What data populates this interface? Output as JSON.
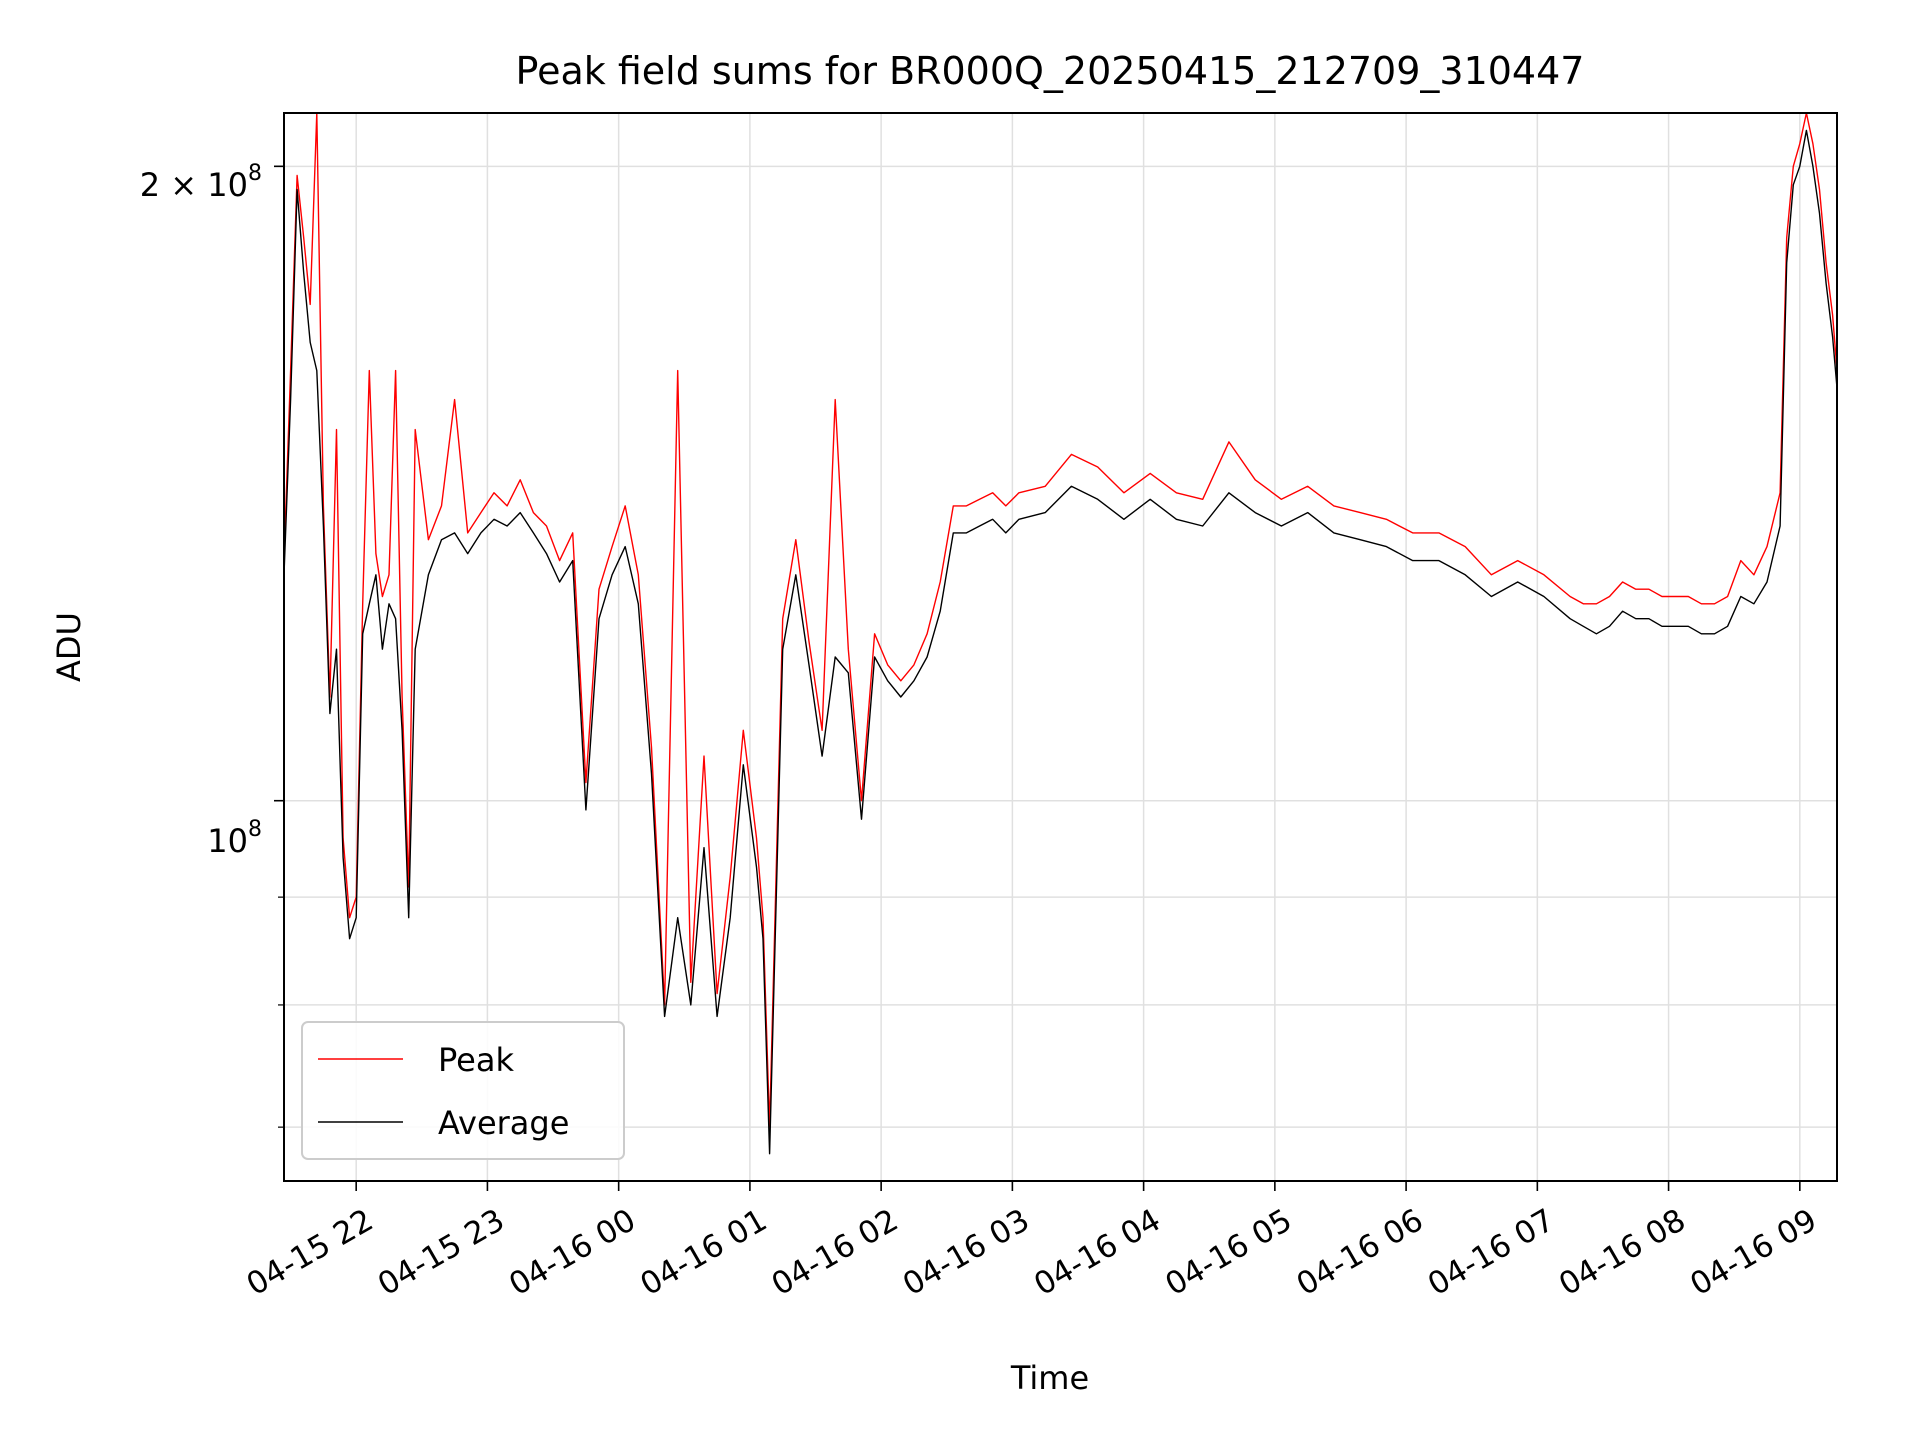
{
  "chart_data": {
    "type": "line",
    "title": "Peak field sums for BR000Q_20250415_212709_310447",
    "xlabel": "Time",
    "ylabel": "ADU",
    "yscale": "log",
    "grid": true,
    "legend_position": "lower-left",
    "x_ticks": [
      "04-15 22",
      "04-15 23",
      "04-16 00",
      "04-16 01",
      "04-16 02",
      "04-16 03",
      "04-16 04",
      "04-16 05",
      "04-16 06",
      "04-16 07",
      "04-16 08",
      "04-16 09"
    ],
    "y_tick_labels": {
      "major_1e8": "10",
      "major_1e8_exp": "8",
      "major_2e8_prefix": "2 × 10",
      "major_2e8_exp": "8"
    },
    "xlim": [
      "04-15 21:27",
      "04-16 09:17"
    ],
    "ylim": [
      66000000,
      212000000
    ],
    "series": [
      {
        "name": "Peak",
        "color": "#ff0000",
        "x": [
          "04-15 21:27",
          "04-15 21:30",
          "04-15 21:33",
          "04-15 21:36",
          "04-15 21:39",
          "04-15 21:42",
          "04-15 21:45",
          "04-15 21:48",
          "04-15 21:51",
          "04-15 21:54",
          "04-15 21:57",
          "04-15 22:00",
          "04-15 22:03",
          "04-15 22:06",
          "04-15 22:09",
          "04-15 22:12",
          "04-15 22:15",
          "04-15 22:18",
          "04-15 22:21",
          "04-15 22:24",
          "04-15 22:27",
          "04-15 22:33",
          "04-15 22:39",
          "04-15 22:45",
          "04-15 22:51",
          "04-15 22:57",
          "04-15 23:03",
          "04-15 23:09",
          "04-15 23:15",
          "04-15 23:21",
          "04-15 23:27",
          "04-15 23:33",
          "04-15 23:39",
          "04-15 23:45",
          "04-15 23:51",
          "04-15 23:57",
          "04-16 00:03",
          "04-16 00:09",
          "04-16 00:15",
          "04-16 00:21",
          "04-16 00:27",
          "04-16 00:33",
          "04-16 00:39",
          "04-16 00:45",
          "04-16 00:51",
          "04-16 00:57",
          "04-16 01:03",
          "04-16 01:06",
          "04-16 01:09",
          "04-16 01:15",
          "04-16 01:21",
          "04-16 01:27",
          "04-16 01:33",
          "04-16 01:39",
          "04-16 01:45",
          "04-16 01:51",
          "04-16 01:57",
          "04-16 02:03",
          "04-16 02:09",
          "04-16 02:15",
          "04-16 02:21",
          "04-16 02:27",
          "04-16 02:33",
          "04-16 02:39",
          "04-16 02:45",
          "04-16 02:51",
          "04-16 02:57",
          "04-16 03:03",
          "04-16 03:15",
          "04-16 03:27",
          "04-16 03:39",
          "04-16 03:51",
          "04-16 04:03",
          "04-16 04:15",
          "04-16 04:27",
          "04-16 04:39",
          "04-16 04:51",
          "04-16 05:03",
          "04-16 05:15",
          "04-16 05:27",
          "04-16 05:39",
          "04-16 05:51",
          "04-16 06:03",
          "04-16 06:15",
          "04-16 06:27",
          "04-16 06:39",
          "04-16 06:51",
          "04-16 07:03",
          "04-16 07:15",
          "04-16 07:21",
          "04-16 07:27",
          "04-16 07:33",
          "04-16 07:39",
          "04-16 07:45",
          "04-16 07:51",
          "04-16 07:57",
          "04-16 08:03",
          "04-16 08:09",
          "04-16 08:15",
          "04-16 08:21",
          "04-16 08:27",
          "04-16 08:33",
          "04-16 08:39",
          "04-16 08:45",
          "04-16 08:51",
          "04-16 08:54",
          "04-16 08:57",
          "04-16 09:00",
          "04-16 09:03",
          "04-16 09:06",
          "04-16 09:09",
          "04-16 09:12",
          "04-16 09:15",
          "04-16 09:17"
        ],
        "values": [
          130000000,
          160000000,
          198000000,
          185000000,
          172000000,
          212000000,
          138000000,
          112000000,
          150000000,
          96000000,
          88000000,
          90000000,
          124000000,
          160000000,
          131000000,
          125000000,
          128000000,
          160000000,
          112000000,
          91000000,
          150000000,
          133000000,
          138000000,
          155000000,
          134000000,
          137000000,
          140000000,
          138000000,
          142000000,
          137000000,
          135000000,
          130000000,
          134000000,
          102000000,
          126000000,
          132000000,
          138000000,
          128000000,
          106000000,
          80000000,
          160000000,
          82000000,
          105000000,
          81000000,
          92000000,
          108000000,
          96000000,
          88000000,
          70000000,
          122000000,
          133000000,
          119000000,
          108000000,
          155000000,
          118000000,
          100000000,
          120000000,
          116000000,
          114000000,
          116000000,
          120000000,
          127000000,
          138000000,
          138000000,
          139000000,
          140000000,
          138000000,
          140000000,
          141000000,
          146000000,
          144000000,
          140000000,
          143000000,
          140000000,
          139000000,
          148000000,
          142000000,
          139000000,
          141000000,
          138000000,
          137000000,
          136000000,
          134000000,
          134000000,
          132000000,
          128000000,
          130000000,
          128000000,
          125000000,
          124000000,
          124000000,
          125000000,
          127000000,
          126000000,
          126000000,
          125000000,
          125000000,
          125000000,
          124000000,
          124000000,
          125000000,
          130000000,
          128000000,
          132000000,
          140000000,
          185000000,
          200000000,
          205000000,
          212000000,
          205000000,
          195000000,
          180000000,
          170000000,
          160000000
        ]
      },
      {
        "name": "Average",
        "color": "#000000",
        "x": [
          "04-15 21:27",
          "04-15 21:30",
          "04-15 21:33",
          "04-15 21:36",
          "04-15 21:39",
          "04-15 21:42",
          "04-15 21:45",
          "04-15 21:48",
          "04-15 21:51",
          "04-15 21:54",
          "04-15 21:57",
          "04-15 22:00",
          "04-15 22:03",
          "04-15 22:06",
          "04-15 22:09",
          "04-15 22:12",
          "04-15 22:15",
          "04-15 22:18",
          "04-15 22:21",
          "04-15 22:24",
          "04-15 22:27",
          "04-15 22:33",
          "04-15 22:39",
          "04-15 22:45",
          "04-15 22:51",
          "04-15 22:57",
          "04-15 23:03",
          "04-15 23:09",
          "04-15 23:15",
          "04-15 23:21",
          "04-15 23:27",
          "04-15 23:33",
          "04-15 23:39",
          "04-15 23:45",
          "04-15 23:51",
          "04-15 23:57",
          "04-16 00:03",
          "04-16 00:09",
          "04-16 00:15",
          "04-16 00:21",
          "04-16 00:27",
          "04-16 00:33",
          "04-16 00:39",
          "04-16 00:45",
          "04-16 00:51",
          "04-16 00:57",
          "04-16 01:03",
          "04-16 01:06",
          "04-16 01:09",
          "04-16 01:15",
          "04-16 01:21",
          "04-16 01:27",
          "04-16 01:33",
          "04-16 01:39",
          "04-16 01:45",
          "04-16 01:51",
          "04-16 01:57",
          "04-16 02:03",
          "04-16 02:09",
          "04-16 02:15",
          "04-16 02:21",
          "04-16 02:27",
          "04-16 02:33",
          "04-16 02:39",
          "04-16 02:45",
          "04-16 02:51",
          "04-16 02:57",
          "04-16 03:03",
          "04-16 03:15",
          "04-16 03:27",
          "04-16 03:39",
          "04-16 03:51",
          "04-16 04:03",
          "04-16 04:15",
          "04-16 04:27",
          "04-16 04:39",
          "04-16 04:51",
          "04-16 05:03",
          "04-16 05:15",
          "04-16 05:27",
          "04-16 05:39",
          "04-16 05:51",
          "04-16 06:03",
          "04-16 06:15",
          "04-16 06:27",
          "04-16 06:39",
          "04-16 06:51",
          "04-16 07:03",
          "04-16 07:15",
          "04-16 07:21",
          "04-16 07:27",
          "04-16 07:33",
          "04-16 07:39",
          "04-16 07:45",
          "04-16 07:51",
          "04-16 07:57",
          "04-16 08:03",
          "04-16 08:09",
          "04-16 08:15",
          "04-16 08:21",
          "04-16 08:27",
          "04-16 08:33",
          "04-16 08:39",
          "04-16 08:45",
          "04-16 08:51",
          "04-16 08:54",
          "04-16 08:57",
          "04-16 09:00",
          "04-16 09:03",
          "04-16 09:06",
          "04-16 09:09",
          "04-16 09:12",
          "04-16 09:15",
          "04-16 09:17"
        ],
        "values": [
          128000000,
          155000000,
          195000000,
          178000000,
          165000000,
          160000000,
          135000000,
          110000000,
          118000000,
          94000000,
          86000000,
          88000000,
          120000000,
          124000000,
          128000000,
          118000000,
          124000000,
          122000000,
          108000000,
          88000000,
          118000000,
          128000000,
          133000000,
          134000000,
          131000000,
          134000000,
          136000000,
          135000000,
          137000000,
          134000000,
          131000000,
          127000000,
          130000000,
          99000000,
          122000000,
          128000000,
          132000000,
          124000000,
          103000000,
          79000000,
          88000000,
          80000000,
          95000000,
          79000000,
          88000000,
          104000000,
          93000000,
          86000000,
          68000000,
          118000000,
          128000000,
          116000000,
          105000000,
          117000000,
          115000000,
          98000000,
          117000000,
          114000000,
          112000000,
          114000000,
          117000000,
          123000000,
          134000000,
          134000000,
          135000000,
          136000000,
          134000000,
          136000000,
          137000000,
          141000000,
          139000000,
          136000000,
          139000000,
          136000000,
          135000000,
          140000000,
          137000000,
          135000000,
          137000000,
          134000000,
          133000000,
          132000000,
          130000000,
          130000000,
          128000000,
          125000000,
          127000000,
          125000000,
          122000000,
          121000000,
          120000000,
          121000000,
          123000000,
          122000000,
          122000000,
          121000000,
          121000000,
          121000000,
          120000000,
          120000000,
          121000000,
          125000000,
          124000000,
          127000000,
          135000000,
          180000000,
          196000000,
          200000000,
          208000000,
          200000000,
          190000000,
          176000000,
          166000000,
          157000000
        ]
      }
    ]
  }
}
